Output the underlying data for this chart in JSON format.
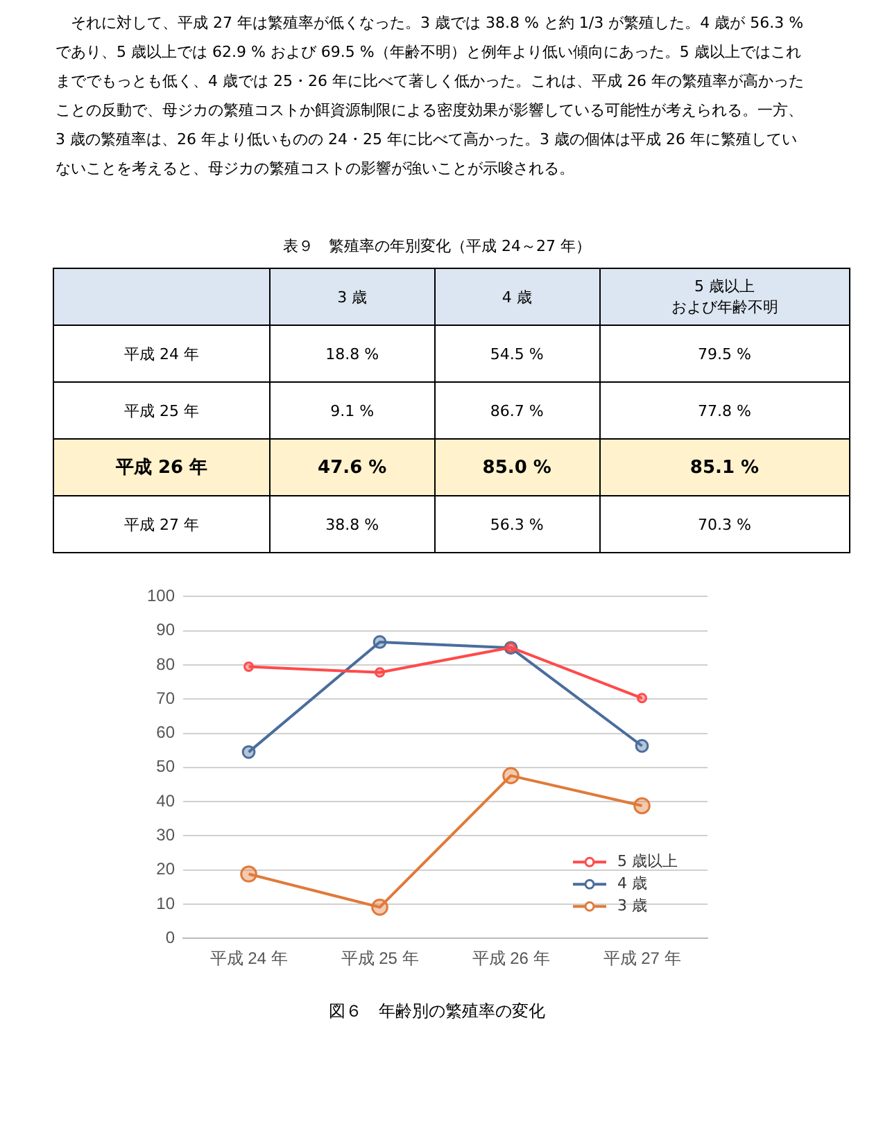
{
  "chart_data": {
    "type": "line",
    "title": "図６　年齢別の繁殖率の変化",
    "annotations": [
      "それに対して、平成 27 年は繁殖率が低くなった。3 歳では 38.8 % と約 1/3 が繁殖した。4 歳が 56.3 %であり、5 歳以上では 62.9 % および 69.5 %（年齢不明）と例年より低い傾向にあった。5 歳以上ではこれまででもっとも低く、4 歳では 25・26 年に比べて著しく低かった。これは、平成 26 年の繁殖率が高かったことの反動で、母ジカの繁殖コストか餌資源制限による密度効果が影響している可能性が考えられる。一方、3 歳の繁殖率は、26 年より低いものの 24・25 年に比べて高かった。3 歳の個体は平成 26 年に繁殖していないことを考えると、母ジカの繁殖コストの影響が強いことが示唆される。",
      "表９　繁殖率の年別変化（平成 24～27 年）",
      "5 歳以上",
      "および年齢不明",
      "4 歳",
      "3 歳",
      "18.8 %",
      "54.5 %",
      "79.5 %",
      "9.1 %",
      "86.7 %",
      "77.8 %",
      "47.6 %",
      "85.0 %",
      "85.1 %",
      "38.8 %",
      "56.3 %",
      "70.3 %"
    ],
    "categories": [
      "平成 24 年",
      "平成 25 年",
      "平成 26 年",
      "平成 27 年"
    ],
    "series": [
      {
        "name": "5 歳以上",
        "color": "#ff4a4a",
        "values": [
          79.5,
          77.8,
          85.1,
          70.3
        ]
      },
      {
        "name": "4 歳",
        "color": "#4a6d9c",
        "values": [
          54.5,
          86.7,
          85.0,
          56.3
        ]
      },
      {
        "name": "3 歳",
        "color": "#e07a3a",
        "values": [
          18.8,
          9.1,
          47.6,
          38.8
        ]
      }
    ],
    "ylim": [
      0,
      100
    ],
    "yticks": [
      0,
      10,
      20,
      30,
      40,
      50,
      60,
      70,
      80,
      90,
      100
    ],
    "grid": "y",
    "legend": "bottom right",
    "marker": "circle",
    "line_style": "solid"
  }
}
